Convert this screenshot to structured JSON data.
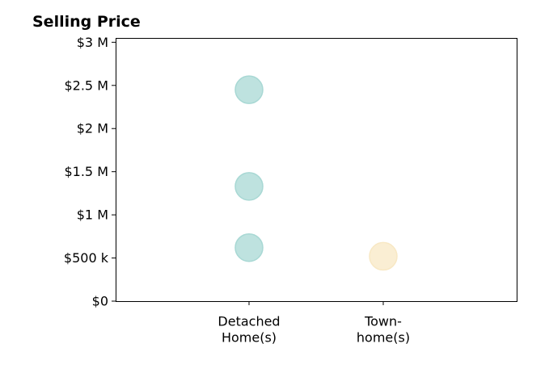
{
  "chart_data": {
    "type": "scatter",
    "title": "Selling Price",
    "xlabel": "",
    "ylabel": "",
    "categories": [
      [
        "Detached",
        "Home(s)"
      ],
      [
        "Town-",
        "home(s)"
      ]
    ],
    "y_ticks": [
      "$0",
      "$500 k",
      "$1 M",
      "$1.5 M",
      "$2 M",
      "$2.5 M",
      "$3 M"
    ],
    "y_tick_values": [
      0,
      500000,
      1000000,
      1500000,
      2000000,
      2500000,
      3000000
    ],
    "ylim": [
      0,
      3050000
    ],
    "grid": false,
    "points": [
      {
        "category": 0,
        "y": 2450000,
        "color": "#a8d8d4"
      },
      {
        "category": 0,
        "y": 1330000,
        "color": "#a8d8d4"
      },
      {
        "category": 0,
        "y": 620000,
        "color": "#a8d8d4"
      },
      {
        "category": 1,
        "y": 520000,
        "color": "#f8e8c4"
      }
    ],
    "colors": {
      "detached": "#a8d8d4",
      "townhome": "#f8e8c4"
    }
  }
}
